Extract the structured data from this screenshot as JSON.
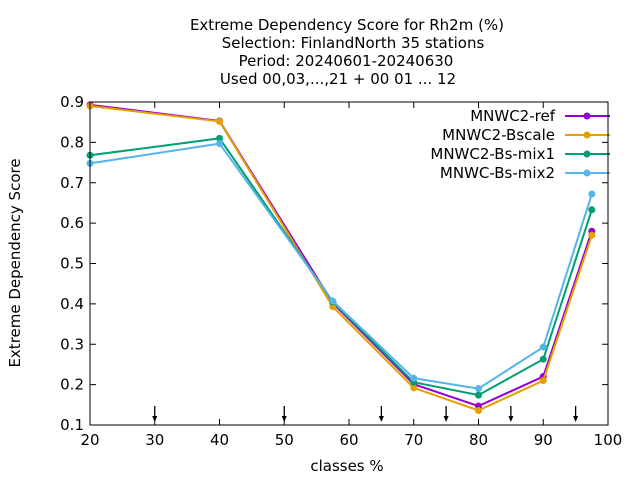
{
  "chart_data": {
    "type": "line",
    "title_lines": [
      "Extreme Dependency Score  for Rh2m (%)",
      "Selection: FinlandNorth     35 stations",
      "Period: 20240601-20240630",
      "Used 00,03,...,21 + 00 01 ... 12"
    ],
    "xlabel": "classes %",
    "ylabel": "Extreme Dependency Score",
    "xlim": [
      20,
      100
    ],
    "ylim": [
      0.1,
      0.9
    ],
    "xticks": [
      20,
      30,
      40,
      50,
      60,
      70,
      80,
      90,
      100
    ],
    "yticks": [
      0.1,
      0.2,
      0.3,
      0.4,
      0.5,
      0.6,
      0.7,
      0.8,
      0.9
    ],
    "xtick_labels": [
      "20",
      "30",
      "40",
      "50",
      "60",
      "70",
      "80",
      "90",
      "100"
    ],
    "ytick_labels": [
      "0.1",
      "0.2",
      "0.3",
      "0.4",
      "0.5",
      "0.6",
      "0.7",
      "0.8",
      "0.9"
    ],
    "class_markers": [
      30,
      50,
      65,
      75,
      85,
      95
    ],
    "x": [
      20,
      40,
      57.5,
      70,
      80,
      90,
      97.5
    ],
    "legend_position": "top-right",
    "grid": false,
    "series": [
      {
        "name": "MNWC2-ref",
        "color": "#9400d3",
        "values": [
          0.893,
          0.853,
          0.402,
          0.201,
          0.147,
          0.22,
          0.58
        ]
      },
      {
        "name": "MNWC2-Bscale",
        "color": "#e69f00",
        "values": [
          0.89,
          0.852,
          0.393,
          0.192,
          0.136,
          0.21,
          0.57
        ]
      },
      {
        "name": "MNWC2-Bs-mix1",
        "color": "#009e73",
        "values": [
          0.768,
          0.81,
          0.405,
          0.206,
          0.174,
          0.263,
          0.633
        ]
      },
      {
        "name": "MNWC-Bs-mix2",
        "color": "#56b4e9",
        "values": [
          0.748,
          0.797,
          0.407,
          0.216,
          0.19,
          0.293,
          0.672
        ]
      }
    ]
  }
}
